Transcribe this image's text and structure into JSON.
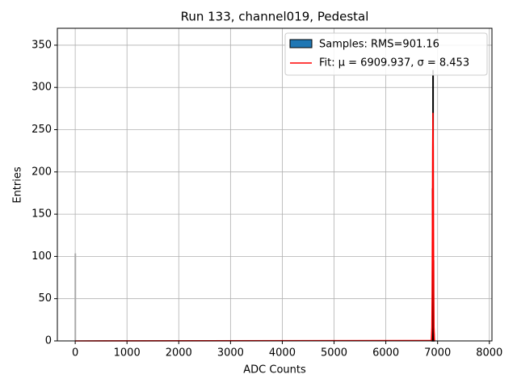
{
  "chart_data": {
    "type": "histogram",
    "title": "Run 133, channel019, Pedestal",
    "x_label": "ADC Counts",
    "y_label": "Entries",
    "xlim": [
      -345,
      8050
    ],
    "ylim": [
      0,
      370
    ],
    "xticks": [
      0,
      1000,
      2000,
      3000,
      4000,
      5000,
      6000,
      7000,
      8000
    ],
    "yticks": [
      0,
      50,
      100,
      150,
      200,
      250,
      300,
      350
    ],
    "grid": true,
    "legend_location": "upper right",
    "histogram": {
      "name": "Samples: RMS=901.16",
      "color": "#1f77b4",
      "bins": [
        -4,
        4,
        6882,
        6890,
        6898,
        6906,
        6914,
        6922,
        6930,
        6938
      ],
      "counts": [
        103,
        0,
        1,
        12,
        180,
        320,
        95,
        8,
        1
      ],
      "bar_colors": [
        "#aaaaaa",
        "#000000",
        "#000000",
        "#000000",
        "#000000",
        "#000000",
        "#000000",
        "#000000",
        "#000000"
      ]
    },
    "fit": {
      "name": "Fit: μ = 6909.937, σ = 8.453",
      "color": "#ff0000",
      "x": [
        0,
        6880,
        6890,
        6895,
        6900,
        6905,
        6910,
        6915,
        6920,
        6925,
        6930,
        6940
      ],
      "values": [
        0,
        0.5,
        16,
        56,
        134,
        227,
        270,
        227,
        134,
        56,
        16,
        0.5
      ]
    }
  }
}
